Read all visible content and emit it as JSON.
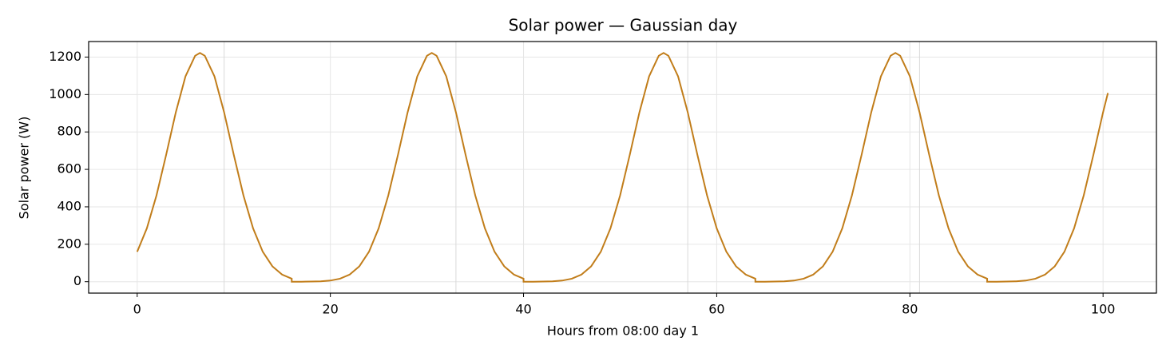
{
  "chart_data": {
    "type": "line",
    "title": "Solar power — Gaussian day",
    "xlabel": "Hours from 08:00 day 1",
    "ylabel": "Solar power (W)",
    "color": "#c17d1a",
    "grid": true,
    "vlines": [
      9,
      33,
      57,
      81
    ],
    "xlim": [
      -5.025,
      105.525
    ],
    "ylim": [
      -61,
      1283
    ],
    "xticks": [
      0,
      20,
      40,
      60,
      80,
      100
    ],
    "yticks": [
      0,
      200,
      400,
      600,
      800,
      1000,
      1200
    ],
    "x": [
      0,
      1,
      2,
      3,
      4,
      5,
      6,
      6.5,
      7,
      8,
      9,
      10,
      11,
      12,
      13,
      14,
      15,
      16,
      16,
      17,
      18,
      19,
      20,
      21,
      22,
      23,
      24,
      25,
      26,
      27,
      28,
      29,
      30,
      30.5,
      31,
      32,
      33,
      34,
      35,
      36,
      37,
      38,
      39,
      40,
      40,
      41,
      42,
      43,
      44,
      45,
      46,
      47,
      48,
      49,
      50,
      51,
      52,
      53,
      54,
      54.5,
      55,
      56,
      57,
      58,
      59,
      60,
      61,
      62,
      63,
      64,
      64,
      65,
      66,
      67,
      68,
      69,
      70,
      71,
      72,
      73,
      74,
      75,
      76,
      77,
      78,
      78.5,
      79,
      80,
      81,
      82,
      83,
      84,
      85,
      86,
      87,
      88,
      88,
      89,
      90,
      91,
      92,
      93,
      94,
      95,
      96,
      97,
      98,
      99,
      100,
      100.5
    ],
    "values": [
      160,
      285,
      461,
      678,
      905,
      1097,
      1207,
      1222,
      1207,
      1097,
      905,
      678,
      461,
      285,
      160,
      82,
      38,
      16,
      0,
      0,
      1,
      2,
      6,
      16,
      38,
      82,
      160,
      285,
      461,
      678,
      905,
      1097,
      1207,
      1222,
      1207,
      1097,
      905,
      678,
      461,
      285,
      160,
      82,
      38,
      16,
      0,
      0,
      1,
      2,
      6,
      16,
      38,
      82,
      160,
      285,
      461,
      678,
      905,
      1097,
      1207,
      1222,
      1207,
      1097,
      905,
      678,
      461,
      285,
      160,
      82,
      38,
      16,
      0,
      0,
      1,
      2,
      6,
      16,
      38,
      82,
      160,
      285,
      461,
      678,
      905,
      1097,
      1207,
      1222,
      1207,
      1097,
      905,
      678,
      461,
      285,
      160,
      82,
      38,
      16,
      0,
      0,
      1,
      2,
      6,
      16,
      38,
      82,
      160,
      285,
      461,
      678,
      905,
      1008
    ]
  }
}
